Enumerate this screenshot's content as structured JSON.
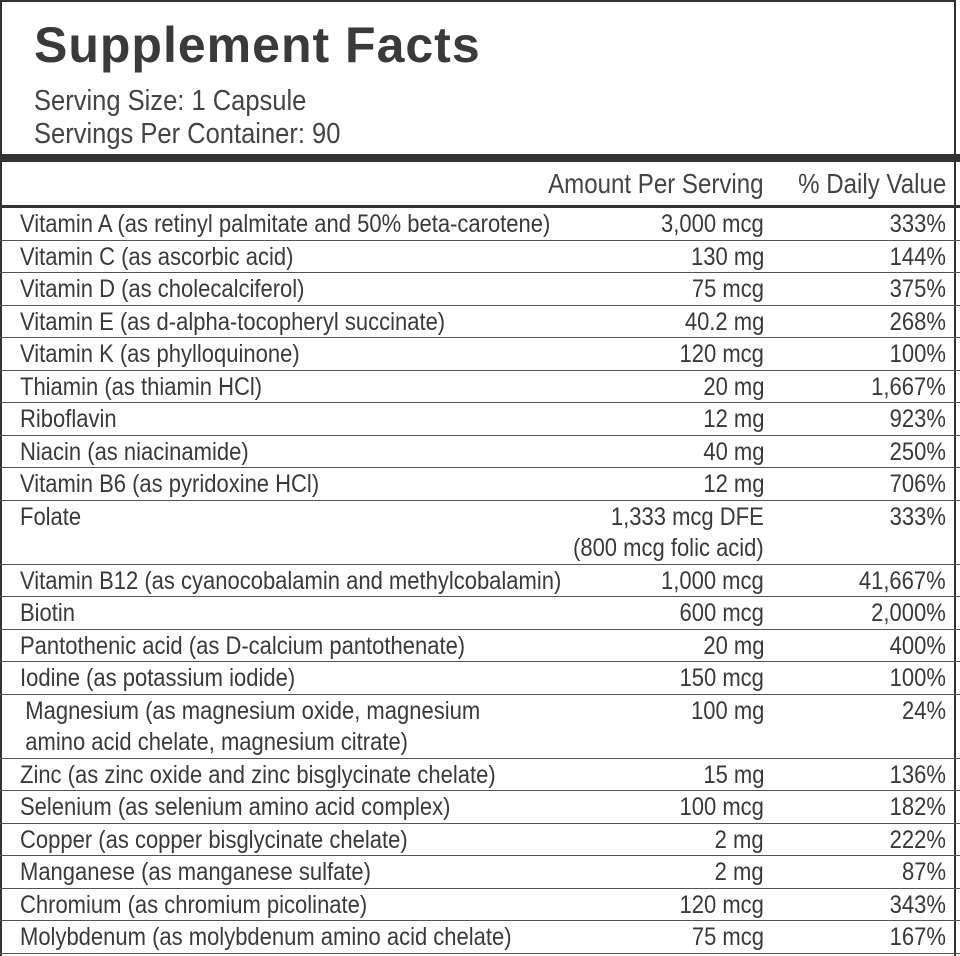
{
  "label": {
    "title": "Supplement Facts",
    "serving_size": "Serving Size: 1 Capsule",
    "servings_per_container": "Servings Per Container: 90",
    "header_amount": "Amount Per Serving",
    "header_dv": "% Daily Value"
  },
  "nutrients": [
    {
      "name": "Vitamin A (as retinyl palmitate and 50% beta-carotene)",
      "amount": "3,000 mcg",
      "dv": "333%"
    },
    {
      "name": "Vitamin C (as ascorbic acid)",
      "amount": "130 mg",
      "dv": "144%"
    },
    {
      "name": "Vitamin D (as cholecalciferol)",
      "amount": "75 mcg",
      "dv": "375%"
    },
    {
      "name": "Vitamin E (as d-alpha-tocopheryl succinate)",
      "amount": "40.2 mg",
      "dv": "268%"
    },
    {
      "name": "Vitamin K (as phylloquinone)",
      "amount": "120 mcg",
      "dv": "100%"
    },
    {
      "name": "Thiamin (as thiamin HCl)",
      "amount": "20 mg",
      "dv": "1,667%"
    },
    {
      "name": "Riboflavin",
      "amount": "12 mg",
      "dv": "923%"
    },
    {
      "name": "Niacin (as niacinamide)",
      "amount": "40 mg",
      "dv": "250%"
    },
    {
      "name": "Vitamin B6 (as pyridoxine HCl)",
      "amount": "12 mg",
      "dv": "706%"
    },
    {
      "name": "Folate",
      "amount": "1,333 mcg DFE",
      "amount2": "(800 mcg folic acid)",
      "dv": "333%"
    },
    {
      "name": "Vitamin B12 (as cyanocobalamin and methylcobalamin)",
      "amount": "1,000 mcg",
      "dv": "41,667%"
    },
    {
      "name": "Biotin",
      "amount": "600 mcg",
      "dv": "2,000%"
    },
    {
      "name": "Pantothenic acid (as D-calcium pantothenate)",
      "amount": "20 mg",
      "dv": "400%"
    },
    {
      "name": "Iodine (as potassium iodide)",
      "amount": "150 mcg",
      "dv": "100%"
    },
    {
      "name": "Magnesium (as magnesium oxide, magnesium",
      "name2": "amino acid chelate, magnesium citrate)",
      "amount": "100 mg",
      "dv": "24%"
    },
    {
      "name": "Zinc (as zinc oxide and zinc bisglycinate chelate)",
      "amount": "15 mg",
      "dv": "136%"
    },
    {
      "name": "Selenium (as selenium amino acid complex)",
      "amount": "100 mcg",
      "dv": "182%"
    },
    {
      "name": "Copper (as copper bisglycinate chelate)",
      "amount": "2 mg",
      "dv": "222%"
    },
    {
      "name": "Manganese (as manganese sulfate)",
      "amount": "2 mg",
      "dv": "87%"
    },
    {
      "name": "Chromium (as chromium picolinate)",
      "amount": "120 mcg",
      "dv": "343%"
    },
    {
      "name": "Molybdenum (as molybdenum amino acid chelate)",
      "amount": "75 mcg",
      "dv": "167%"
    }
  ]
}
